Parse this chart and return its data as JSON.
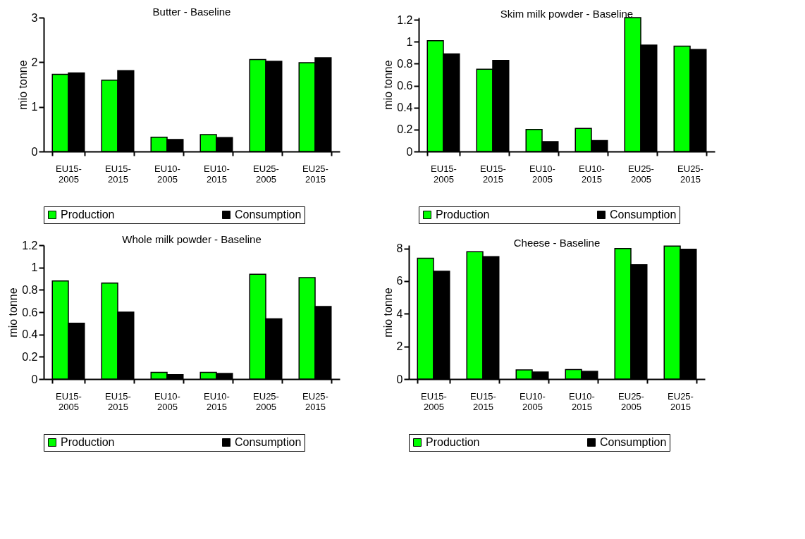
{
  "chart_data": [
    {
      "type": "bar",
      "title": "Butter - Baseline",
      "ylabel": "mio tonne",
      "categories": [
        "EU15-2005",
        "EU15-2015",
        "EU10-2005",
        "EU10-2015",
        "EU25-2005",
        "EU25-2015"
      ],
      "ylim": [
        0,
        3
      ],
      "yticks": [
        0,
        1,
        2,
        3
      ],
      "grid": false,
      "legend": "bottom",
      "series": [
        {
          "name": "Production",
          "color": "#00ff00",
          "values": [
            1.73,
            1.6,
            0.32,
            0.38,
            2.06,
            1.99
          ]
        },
        {
          "name": "Consumption",
          "color": "#000000",
          "values": [
            1.76,
            1.81,
            0.27,
            0.31,
            2.02,
            2.1
          ]
        }
      ]
    },
    {
      "type": "bar",
      "title": "Skim milk powder - Baseline",
      "ylabel": "mio tonne",
      "categories": [
        "EU15-2005",
        "EU15-2015",
        "EU10-2005",
        "EU10-2015",
        "EU25-2005",
        "EU25-2015"
      ],
      "ylim": [
        0,
        1.22
      ],
      "yticks": [
        0,
        0.2,
        0.4,
        0.6,
        0.8,
        1,
        1.2
      ],
      "grid": false,
      "legend": "bottom",
      "series": [
        {
          "name": "Production",
          "color": "#00ff00",
          "values": [
            1.01,
            0.75,
            0.2,
            0.21,
            1.22,
            0.96
          ]
        },
        {
          "name": "Consumption",
          "color": "#000000",
          "values": [
            0.89,
            0.83,
            0.09,
            0.1,
            0.97,
            0.93
          ]
        }
      ]
    },
    {
      "type": "bar",
      "title": "Whole milk powder - Baseline",
      "ylabel": "mio tonne",
      "categories": [
        "EU15-2005",
        "EU15-2015",
        "EU10-2005",
        "EU10-2015",
        "EU25-2005",
        "EU25-2015"
      ],
      "ylim": [
        0,
        1.2
      ],
      "yticks": [
        0,
        0.2,
        0.4,
        0.6,
        0.8,
        1,
        1.2
      ],
      "grid": false,
      "legend": "bottom",
      "series": [
        {
          "name": "Production",
          "color": "#00ff00",
          "values": [
            0.88,
            0.86,
            0.06,
            0.06,
            0.94,
            0.91
          ]
        },
        {
          "name": "Consumption",
          "color": "#000000",
          "values": [
            0.5,
            0.6,
            0.04,
            0.05,
            0.54,
            0.65
          ]
        }
      ]
    },
    {
      "type": "bar",
      "title": "Cheese - Baseline",
      "ylabel": "mio tonne",
      "categories": [
        "EU15-2005",
        "EU15-2015",
        "EU10-2005",
        "EU10-2015",
        "EU25-2005",
        "EU25-2015"
      ],
      "ylim": [
        0,
        8.2
      ],
      "yticks": [
        0,
        2,
        4,
        6,
        8
      ],
      "grid": false,
      "legend": "bottom",
      "series": [
        {
          "name": "Production",
          "color": "#00ff00",
          "values": [
            7.4,
            7.8,
            0.56,
            0.58,
            8.0,
            8.15
          ]
        },
        {
          "name": "Consumption",
          "color": "#000000",
          "values": [
            6.6,
            7.5,
            0.43,
            0.47,
            7.0,
            7.95
          ]
        }
      ]
    }
  ]
}
